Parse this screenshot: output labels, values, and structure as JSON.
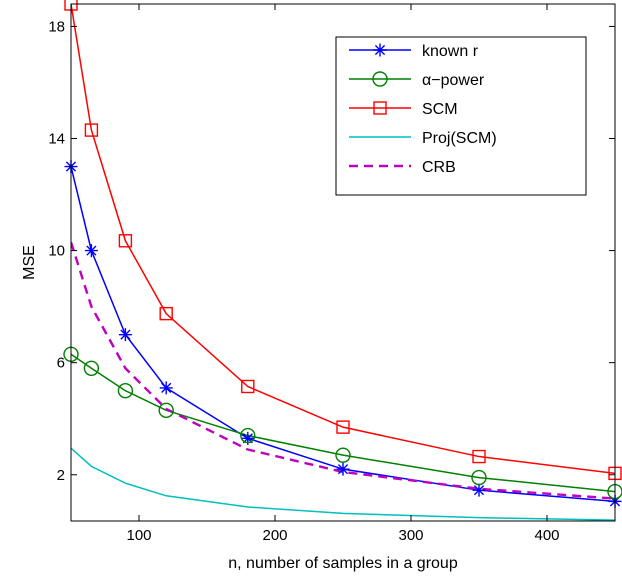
{
  "chart_data": {
    "type": "line",
    "title": "",
    "xlabel": "n, number of samples in a group",
    "ylabel": "MSE",
    "xlim": [
      50,
      450
    ],
    "ylim": [
      0.35,
      18.8
    ],
    "xticks": [
      100,
      200,
      300,
      400
    ],
    "yticks": [
      2,
      6,
      10,
      14,
      18
    ],
    "grid": false,
    "legend_position": "top-right",
    "series": [
      {
        "name": "known r",
        "color": "#0000ff",
        "line_style": "solid",
        "marker": "asterisk",
        "x": [
          50,
          65,
          90,
          120,
          180,
          250,
          350,
          450
        ],
        "y": [
          13.0,
          10.0,
          7.0,
          5.1,
          3.3,
          2.2,
          1.45,
          1.05
        ]
      },
      {
        "name": "α−power",
        "color": "#008000",
        "line_style": "solid",
        "marker": "circle",
        "x": [
          50,
          65,
          90,
          120,
          180,
          250,
          350,
          450
        ],
        "y": [
          6.3,
          5.8,
          5.0,
          4.3,
          3.4,
          2.7,
          1.9,
          1.4
        ]
      },
      {
        "name": "SCM",
        "color": "#ff0000",
        "line_style": "solid",
        "marker": "square",
        "x": [
          50,
          65,
          90,
          120,
          180,
          250,
          350,
          450
        ],
        "y": [
          18.8,
          14.3,
          10.35,
          7.75,
          5.15,
          3.7,
          2.65,
          2.05
        ]
      },
      {
        "name": "Proj(SCM)",
        "color": "#00bfbf",
        "line_style": "solid",
        "marker": "none",
        "x": [
          50,
          65,
          90,
          120,
          180,
          250,
          350,
          450
        ],
        "y": [
          2.95,
          2.3,
          1.7,
          1.25,
          0.85,
          0.62,
          0.47,
          0.38
        ]
      },
      {
        "name": "CRB",
        "color": "#bf00bf",
        "line_style": "dashed",
        "marker": "none",
        "x": [
          50,
          65,
          90,
          120,
          180,
          250,
          350,
          450
        ],
        "y": [
          10.3,
          8.0,
          5.8,
          4.35,
          2.9,
          2.1,
          1.5,
          1.15
        ]
      }
    ]
  }
}
